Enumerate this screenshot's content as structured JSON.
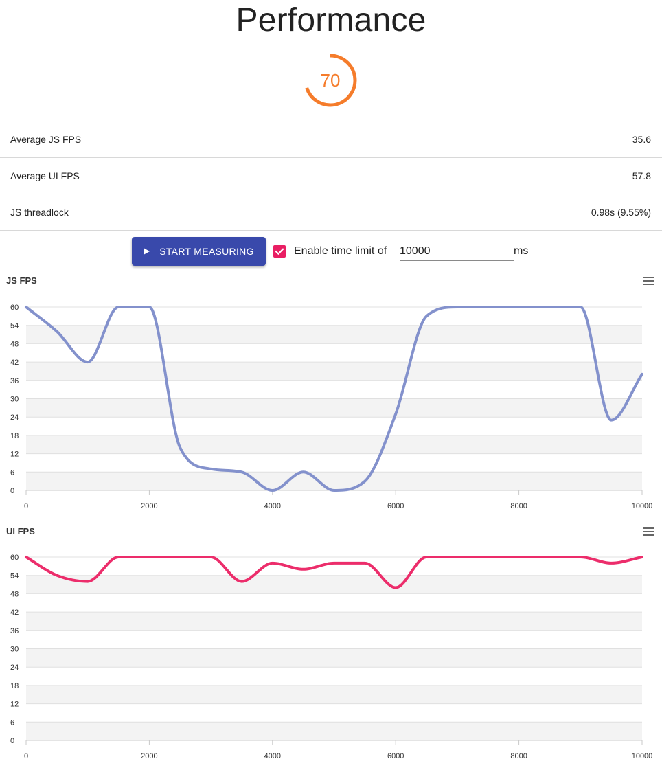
{
  "title": "Performance",
  "score": {
    "value": "70",
    "fraction": 0.7,
    "color": "#f57c2b"
  },
  "metrics": [
    {
      "label": "Average JS FPS",
      "value": "35.6"
    },
    {
      "label": "Average UI FPS",
      "value": "57.8"
    },
    {
      "label": "JS threadlock",
      "value": "0.98s (9.55%)"
    }
  ],
  "controls": {
    "start_label": "START MEASURING",
    "enable_time_limit_checked": true,
    "enable_time_limit_label": "Enable time limit of",
    "time_limit_value": "10000",
    "unit": "ms"
  },
  "icons": {
    "play": "play-icon",
    "check": "check-icon",
    "menu": "hamburger-menu-icon"
  },
  "chart_data": [
    {
      "type": "line",
      "title": "JS FPS",
      "color": "#8391cc",
      "xlim": [
        0,
        10000
      ],
      "ylim": [
        0,
        60
      ],
      "x_ticks": [
        "0",
        "2000",
        "4000",
        "6000",
        "8000",
        "10000"
      ],
      "y_ticks": [
        "0",
        "6",
        "12",
        "18",
        "24",
        "30",
        "36",
        "42",
        "48",
        "54",
        "60"
      ],
      "grid": true,
      "x": [
        0,
        500,
        1000,
        1500,
        2000,
        2500,
        3000,
        3500,
        4000,
        4500,
        5000,
        5500,
        6000,
        6500,
        7000,
        7500,
        8000,
        8500,
        9000,
        9500,
        10000
      ],
      "values": [
        60,
        52,
        42,
        60,
        60,
        14,
        7,
        6,
        0,
        6,
        0,
        3,
        25,
        57,
        60,
        60,
        60,
        60,
        60,
        23,
        38
      ]
    },
    {
      "type": "line",
      "title": "UI FPS",
      "color": "#ec2d6b",
      "xlim": [
        0,
        10000
      ],
      "ylim": [
        0,
        60
      ],
      "x_ticks": [
        "0",
        "2000",
        "4000",
        "6000",
        "8000",
        "10000"
      ],
      "y_ticks": [
        "0",
        "6",
        "12",
        "18",
        "24",
        "30",
        "36",
        "42",
        "48",
        "54",
        "60"
      ],
      "grid": true,
      "x": [
        0,
        500,
        1000,
        1500,
        2000,
        2500,
        3000,
        3500,
        4000,
        4500,
        5000,
        5500,
        6000,
        6500,
        7000,
        7500,
        8000,
        8500,
        9000,
        9500,
        10000
      ],
      "values": [
        60,
        54,
        52,
        60,
        60,
        60,
        60,
        52,
        58,
        56,
        58,
        58,
        50,
        60,
        60,
        60,
        60,
        60,
        60,
        58,
        60
      ]
    }
  ]
}
